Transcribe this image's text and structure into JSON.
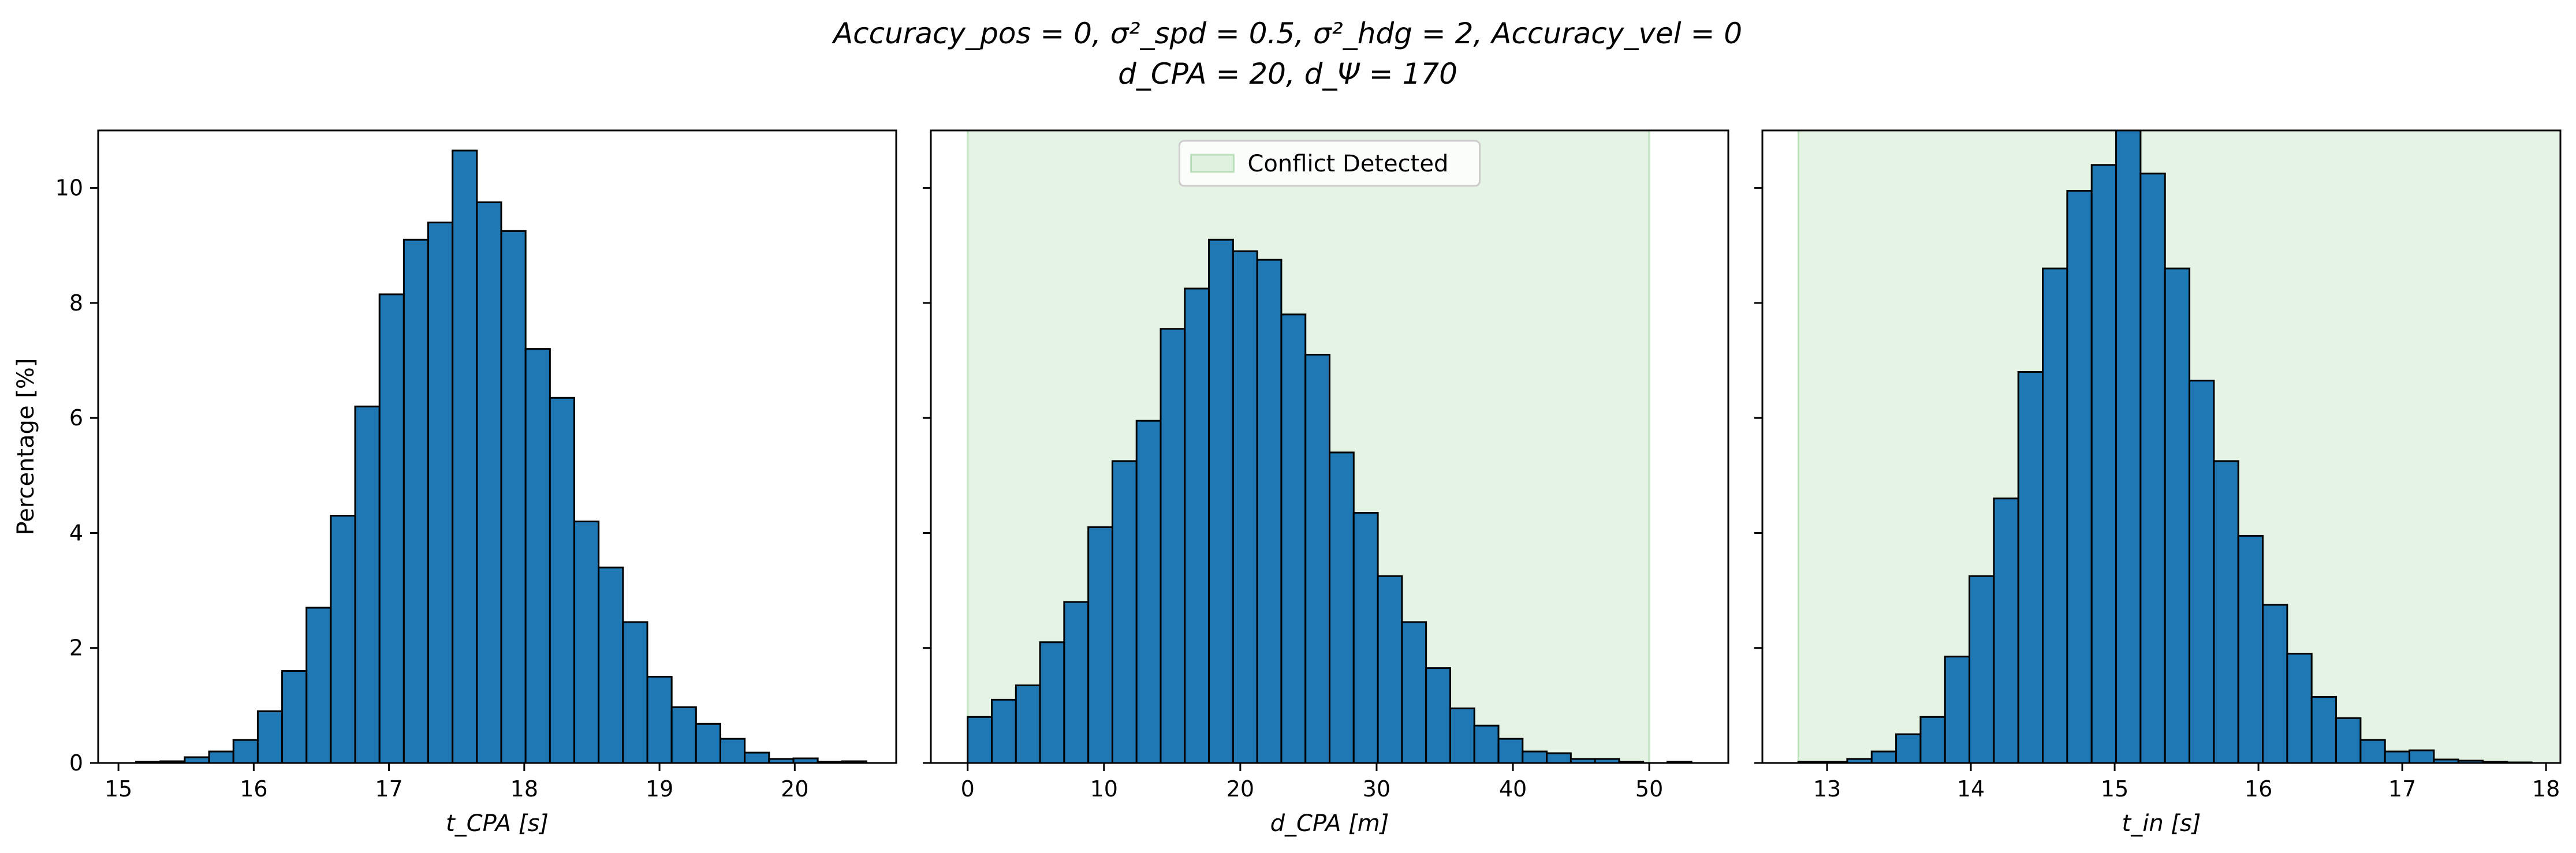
{
  "figure": {
    "title_line1": "Accuracy_pos = 0, σ²_spd = 0.5, σ²_hdg = 2, Accuracy_vel = 0",
    "title_line2": "d_CPA = 20, d_Ψ = 170"
  },
  "chart_data": [
    {
      "type": "bar",
      "panel": "left",
      "xlabel": "t_CPA [s]",
      "ylabel": "Percentage [%]",
      "xlim": [
        14.85,
        20.75
      ],
      "ylim": [
        0,
        11
      ],
      "xticks": [
        15,
        16,
        17,
        18,
        19,
        20
      ],
      "yticks": [
        0,
        2,
        4,
        6,
        8,
        10
      ],
      "bin_edges": [
        15.13,
        15.31,
        15.49,
        15.67,
        15.85,
        16.03,
        16.21,
        16.39,
        16.57,
        16.75,
        16.93,
        17.11,
        17.29,
        17.47,
        17.65,
        17.83,
        18.01,
        18.19,
        18.37,
        18.55,
        18.73,
        18.91,
        19.09,
        19.27,
        19.45,
        19.63,
        19.81,
        19.99,
        20.17,
        20.35,
        20.53
      ],
      "values": [
        0.02,
        0.03,
        0.1,
        0.2,
        0.4,
        0.9,
        1.6,
        2.7,
        4.3,
        6.2,
        8.15,
        9.1,
        9.4,
        10.65,
        9.75,
        9.25,
        7.2,
        6.35,
        4.2,
        3.4,
        2.45,
        1.5,
        0.97,
        0.68,
        0.42,
        0.18,
        0.07,
        0.08,
        0.02,
        0.03
      ],
      "legend": null,
      "shaded_region": null
    },
    {
      "type": "bar",
      "panel": "middle",
      "xlabel": "d_CPA [m]",
      "ylabel": "",
      "xlim": [
        -2.7,
        55.8
      ],
      "ylim": [
        0,
        11
      ],
      "xticks": [
        0,
        10,
        20,
        30,
        40,
        50
      ],
      "yticks": [
        0,
        2,
        4,
        6,
        8,
        10
      ],
      "bin_edges": [
        0.0,
        1.77,
        3.54,
        5.31,
        7.08,
        8.85,
        10.62,
        12.39,
        14.16,
        15.93,
        17.7,
        19.47,
        21.24,
        23.01,
        24.78,
        26.55,
        28.32,
        30.09,
        31.86,
        33.63,
        35.4,
        37.17,
        38.94,
        40.71,
        42.48,
        44.25,
        46.02,
        47.79,
        49.56,
        51.33,
        53.1
      ],
      "values": [
        0.8,
        1.1,
        1.35,
        2.1,
        2.8,
        4.1,
        5.25,
        5.95,
        7.55,
        8.25,
        9.1,
        8.9,
        8.75,
        7.8,
        7.1,
        5.4,
        4.35,
        3.25,
        2.45,
        1.65,
        0.95,
        0.65,
        0.42,
        0.2,
        0.17,
        0.07,
        0.07,
        0.02,
        0.0,
        0.02
      ],
      "legend": {
        "entries": [
          "Conflict Detected"
        ],
        "placement": "upper center"
      },
      "shaded_region": {
        "x0": 0,
        "x1": 50,
        "label": "Conflict Detected"
      }
    },
    {
      "type": "bar",
      "panel": "right",
      "xlabel": "t_in [s]",
      "ylabel": "",
      "xlim": [
        12.55,
        18.1
      ],
      "ylim": [
        0,
        11
      ],
      "xticks": [
        13,
        14,
        15,
        16,
        17,
        18
      ],
      "yticks": [
        0,
        2,
        4,
        6,
        8,
        10
      ],
      "bin_edges": [
        12.8,
        12.97,
        13.14,
        13.31,
        13.48,
        13.65,
        13.82,
        13.99,
        14.16,
        14.33,
        14.5,
        14.67,
        14.84,
        15.01,
        15.18,
        15.35,
        15.52,
        15.69,
        15.86,
        16.03,
        16.2,
        16.37,
        16.54,
        16.71,
        16.88,
        17.05,
        17.22,
        17.39,
        17.56,
        17.73,
        17.9
      ],
      "values": [
        0.02,
        0.02,
        0.07,
        0.2,
        0.5,
        0.8,
        1.85,
        3.25,
        4.6,
        6.8,
        8.6,
        9.95,
        10.4,
        11.15,
        10.25,
        8.6,
        6.65,
        5.25,
        3.95,
        2.75,
        1.9,
        1.15,
        0.78,
        0.4,
        0.2,
        0.22,
        0.06,
        0.04,
        0.02,
        0.01
      ],
      "legend": null,
      "shaded_region": {
        "x0": 12.8,
        "x1": 18.1,
        "label": "Conflict Detected"
      }
    }
  ]
}
